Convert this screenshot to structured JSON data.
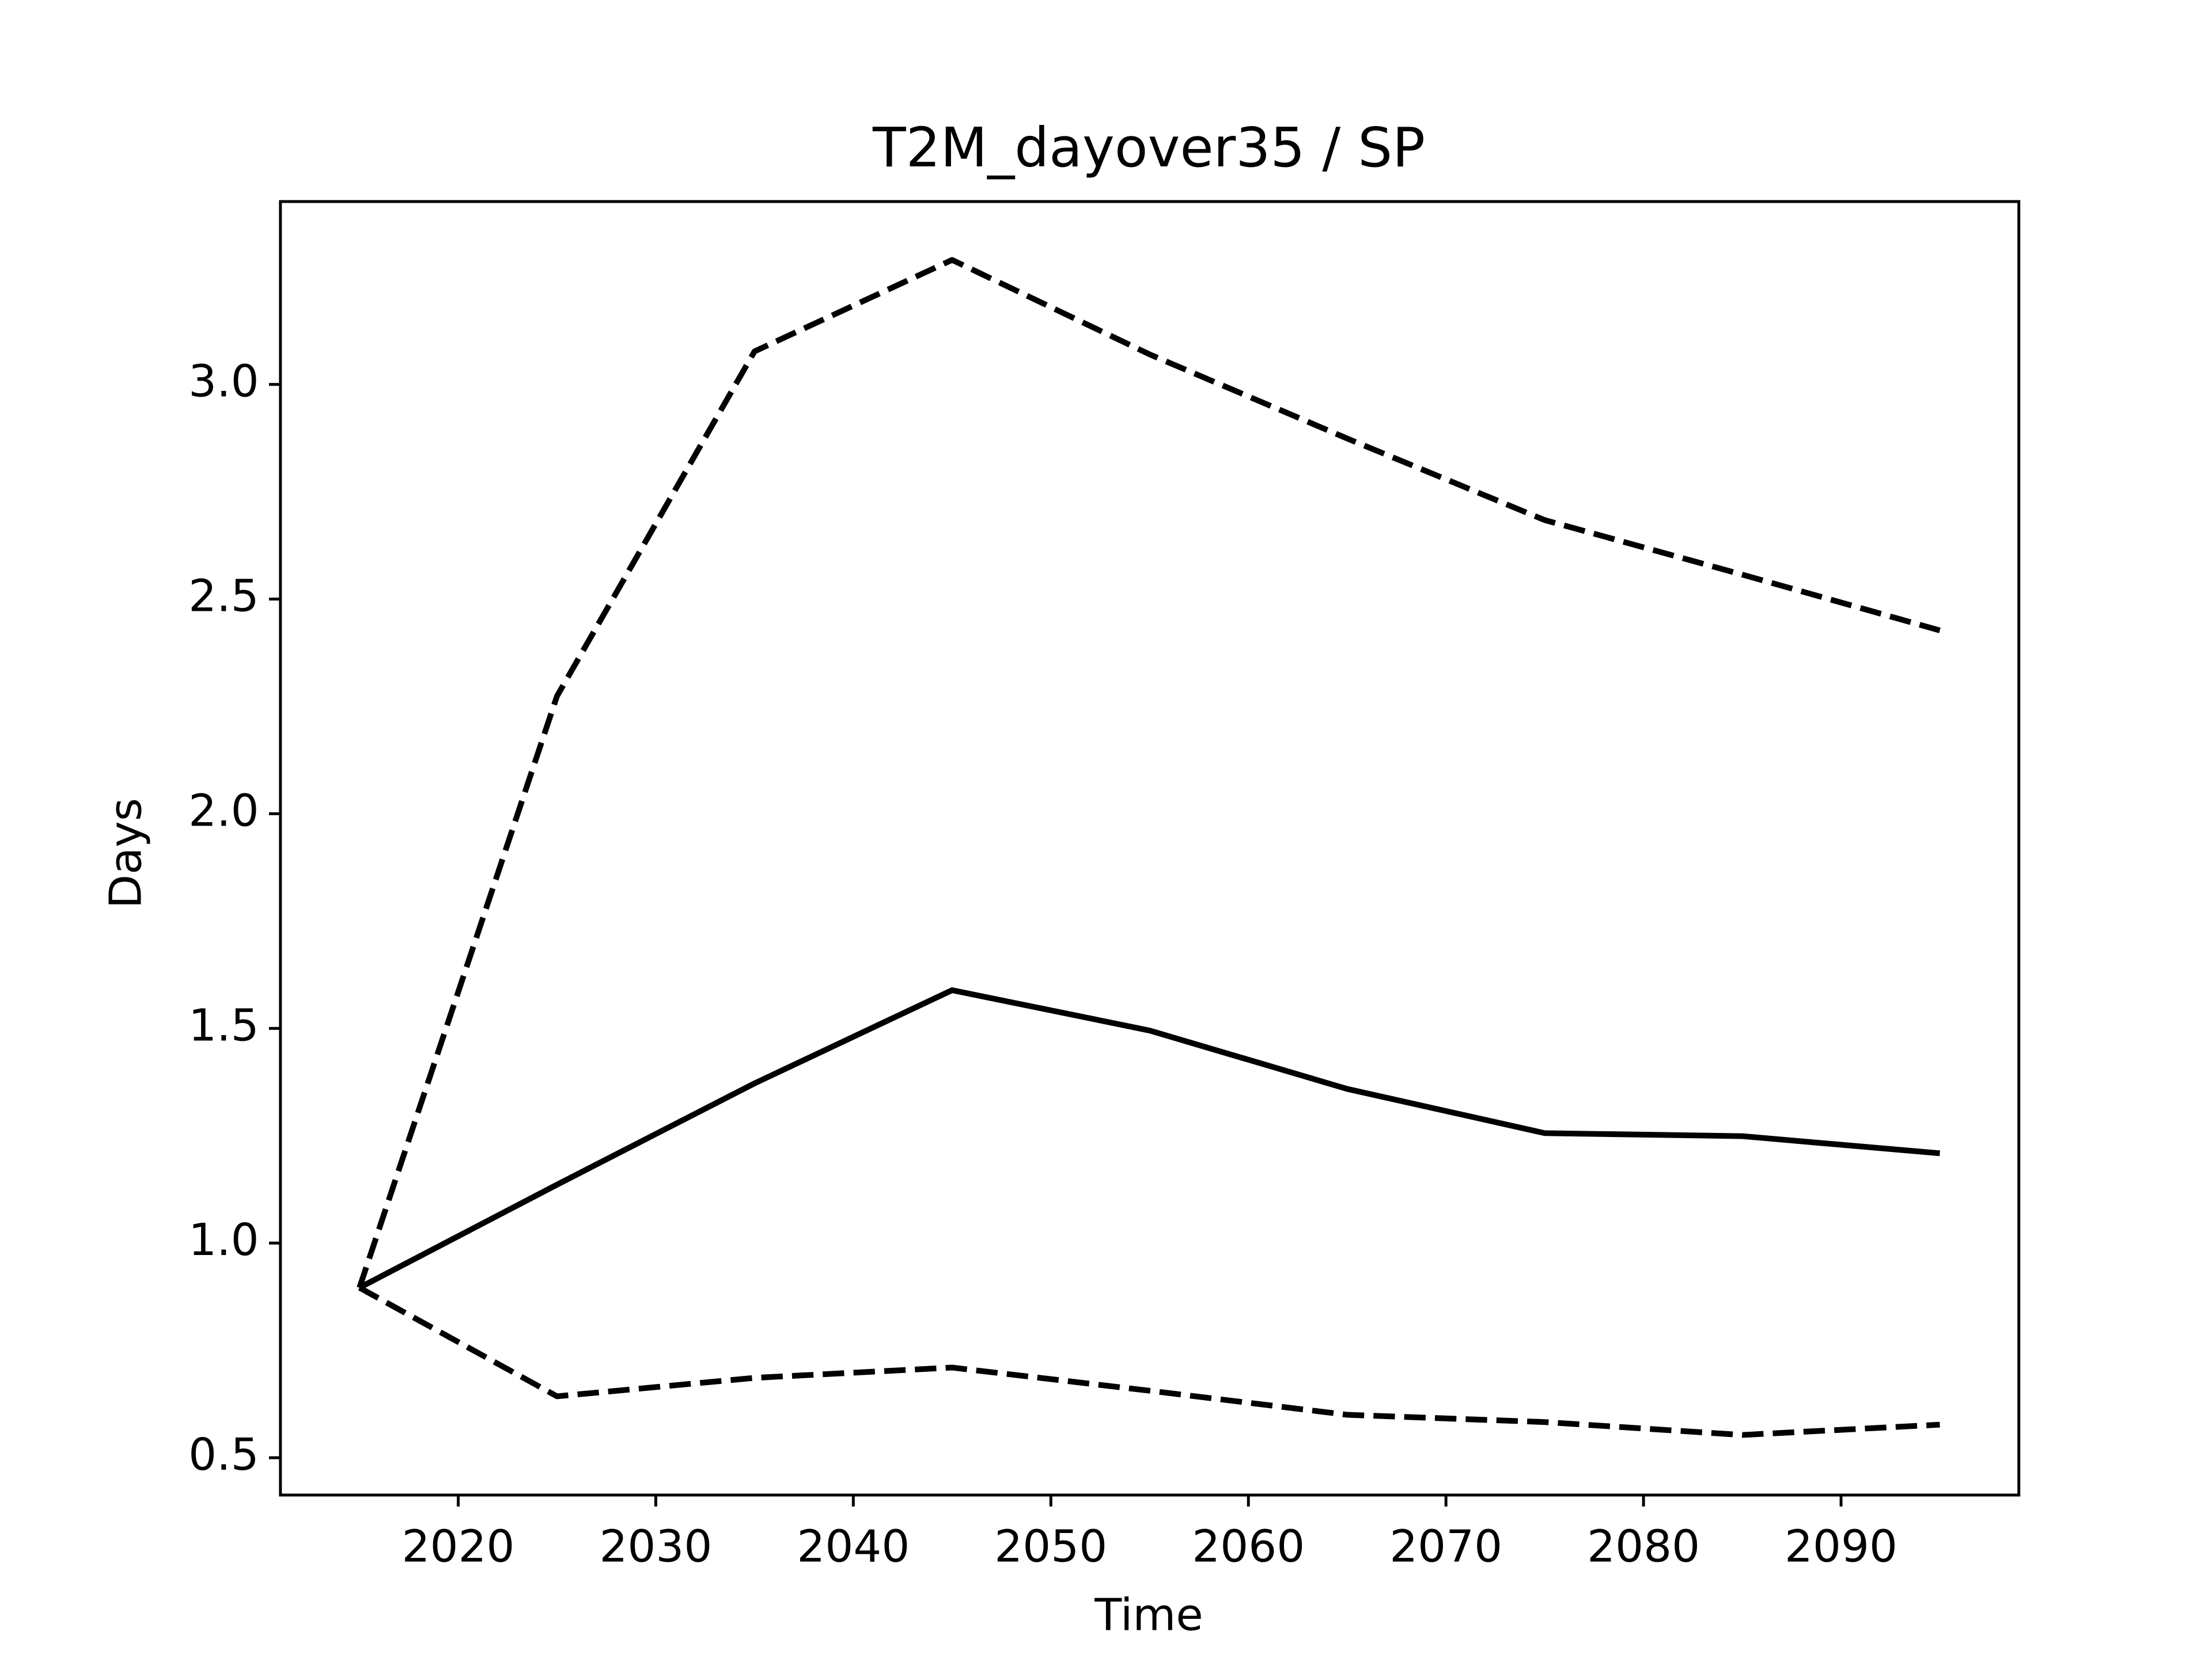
{
  "chart_data": {
    "type": "line",
    "title": "T2M_dayover35 / SP",
    "xlabel": "Time",
    "ylabel": "Days",
    "x": [
      2015,
      2025,
      2035,
      2045,
      2055,
      2065,
      2075,
      2085,
      2095
    ],
    "series": [
      {
        "color": "#000000",
        "dash": false,
        "values": [
          0.896,
          1.136,
          1.372,
          1.589,
          1.495,
          1.359,
          1.256,
          1.249,
          1.209
        ]
      },
      {
        "color": "#000000",
        "dash": true,
        "values": [
          0.896,
          2.274,
          3.077,
          3.29,
          3.07,
          2.874,
          2.684,
          2.557,
          2.427
        ]
      },
      {
        "color": "#000000",
        "dash": true,
        "values": [
          0.896,
          0.643,
          0.686,
          0.71,
          0.656,
          0.6,
          0.583,
          0.553,
          0.577
        ]
      }
    ],
    "xlim": [
      2011,
      2099
    ],
    "ylim": [
      0.413,
      3.426
    ],
    "xticks": [
      2020,
      2030,
      2040,
      2050,
      2060,
      2070,
      2080,
      2090
    ],
    "yticks": [
      0.5,
      {
        "value": 1,
        "label": "1.0"
      },
      1.5,
      {
        "value": 2,
        "label": "2.0"
      },
      2.5,
      {
        "value": 3,
        "label": "3.0"
      }
    ],
    "grid": false
  }
}
